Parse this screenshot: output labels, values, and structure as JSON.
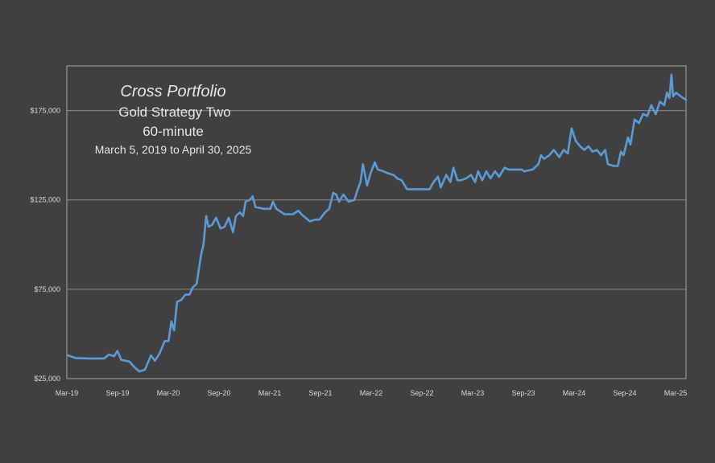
{
  "chart_data": {
    "type": "line",
    "title": "Cross Portfolio",
    "subtitle_1": "Gold Strategy Two",
    "subtitle_2": "60-minute",
    "date_range": "March 5,  2019 to April 30, 2025",
    "xlabel": "",
    "ylabel": "",
    "ylim": [
      25000,
      200000
    ],
    "grid": "horizontal",
    "legend": "none",
    "x_ticks": [
      "Mar-19",
      "Sep-19",
      "Mar-20",
      "Sep-20",
      "Mar-21",
      "Sep-21",
      "Mar-22",
      "Sep-22",
      "Mar-23",
      "Sep-23",
      "Mar-24",
      "Sep-24",
      "Mar-25"
    ],
    "y_ticks": [
      {
        "value": 25000,
        "label": "$25,000"
      },
      {
        "value": 75000,
        "label": "$75,000"
      },
      {
        "value": 125000,
        "label": "$125,000"
      },
      {
        "value": 175000,
        "label": "$175,000"
      }
    ],
    "series": [
      {
        "color": "#5b9bd5",
        "points": [
          [
            "2019-03-05",
            38000
          ],
          [
            "2019-04-01",
            36500
          ],
          [
            "2019-06-01",
            36200
          ],
          [
            "2019-07-15",
            36300
          ],
          [
            "2019-08-01",
            38500
          ],
          [
            "2019-08-20",
            37500
          ],
          [
            "2019-09-01",
            40500
          ],
          [
            "2019-09-15",
            35500
          ],
          [
            "2019-10-15",
            34500
          ],
          [
            "2019-11-01",
            31500
          ],
          [
            "2019-11-20",
            29000
          ],
          [
            "2019-12-10",
            30000
          ],
          [
            "2020-01-01",
            38000
          ],
          [
            "2020-01-15",
            35000
          ],
          [
            "2020-02-01",
            39000
          ],
          [
            "2020-02-20",
            46000
          ],
          [
            "2020-03-05",
            46000
          ],
          [
            "2020-03-15",
            57000
          ],
          [
            "2020-03-25",
            52000
          ],
          [
            "2020-04-05",
            68000
          ],
          [
            "2020-04-20",
            69000
          ],
          [
            "2020-05-05",
            72000
          ],
          [
            "2020-05-20",
            72000
          ],
          [
            "2020-06-01",
            76000
          ],
          [
            "2020-06-15",
            78000
          ],
          [
            "2020-07-01",
            94000
          ],
          [
            "2020-07-10",
            100000
          ],
          [
            "2020-07-20",
            116000
          ],
          [
            "2020-07-28",
            110000
          ],
          [
            "2020-08-10",
            111000
          ],
          [
            "2020-08-25",
            115000
          ],
          [
            "2020-09-10",
            109000
          ],
          [
            "2020-09-25",
            110000
          ],
          [
            "2020-10-10",
            115000
          ],
          [
            "2020-10-25",
            107000
          ],
          [
            "2020-11-05",
            116000
          ],
          [
            "2020-11-20",
            118000
          ],
          [
            "2020-12-01",
            116000
          ],
          [
            "2020-12-10",
            124000
          ],
          [
            "2020-12-25",
            125000
          ],
          [
            "2021-01-05",
            127000
          ],
          [
            "2021-01-15",
            121000
          ],
          [
            "2021-02-15",
            120000
          ],
          [
            "2021-03-10",
            120000
          ],
          [
            "2021-03-20",
            124000
          ],
          [
            "2021-04-01",
            120000
          ],
          [
            "2021-05-01",
            117000
          ],
          [
            "2021-06-01",
            117000
          ],
          [
            "2021-06-20",
            119000
          ],
          [
            "2021-07-01",
            117000
          ],
          [
            "2021-08-01",
            113000
          ],
          [
            "2021-08-20",
            114000
          ],
          [
            "2021-09-05",
            114000
          ],
          [
            "2021-09-25",
            118000
          ],
          [
            "2021-10-10",
            120000
          ],
          [
            "2021-10-25",
            129000
          ],
          [
            "2021-11-05",
            128000
          ],
          [
            "2021-11-15",
            124000
          ],
          [
            "2021-12-01",
            128000
          ],
          [
            "2021-12-20",
            124000
          ],
          [
            "2022-01-10",
            125000
          ],
          [
            "2022-01-20",
            130000
          ],
          [
            "2022-02-01",
            135000
          ],
          [
            "2022-02-10",
            145000
          ],
          [
            "2022-02-25",
            133000
          ],
          [
            "2022-03-10",
            140000
          ],
          [
            "2022-03-25",
            146000
          ],
          [
            "2022-04-05",
            142000
          ],
          [
            "2022-04-25",
            141000
          ],
          [
            "2022-05-10",
            140000
          ],
          [
            "2022-06-01",
            139000
          ],
          [
            "2022-06-15",
            137000
          ],
          [
            "2022-07-01",
            136000
          ],
          [
            "2022-07-20",
            131000
          ],
          [
            "2022-08-15",
            131000
          ],
          [
            "2022-09-15",
            131000
          ],
          [
            "2022-10-10",
            131000
          ],
          [
            "2022-10-25",
            135000
          ],
          [
            "2022-11-10",
            138000
          ],
          [
            "2022-11-20",
            132000
          ],
          [
            "2022-12-10",
            139000
          ],
          [
            "2022-12-25",
            135000
          ],
          [
            "2023-01-05",
            143000
          ],
          [
            "2023-01-20",
            136000
          ],
          [
            "2023-02-01",
            136000
          ],
          [
            "2023-02-20",
            137000
          ],
          [
            "2023-03-10",
            139000
          ],
          [
            "2023-03-25",
            135000
          ],
          [
            "2023-04-05",
            141000
          ],
          [
            "2023-04-20",
            136000
          ],
          [
            "2023-05-05",
            141000
          ],
          [
            "2023-05-20",
            137000
          ],
          [
            "2023-06-05",
            141000
          ],
          [
            "2023-06-20",
            138000
          ],
          [
            "2023-07-10",
            143000
          ],
          [
            "2023-07-25",
            142000
          ],
          [
            "2023-08-20",
            142000
          ],
          [
            "2023-09-10",
            142000
          ],
          [
            "2023-09-20",
            141000
          ],
          [
            "2023-10-20",
            142000
          ],
          [
            "2023-11-10",
            145000
          ],
          [
            "2023-11-20",
            150000
          ],
          [
            "2023-12-01",
            148000
          ],
          [
            "2023-12-20",
            150000
          ],
          [
            "2024-01-05",
            153000
          ],
          [
            "2024-01-25",
            149000
          ],
          [
            "2024-02-10",
            153000
          ],
          [
            "2024-02-25",
            151000
          ],
          [
            "2024-03-10",
            165000
          ],
          [
            "2024-03-25",
            158000
          ],
          [
            "2024-04-10",
            155000
          ],
          [
            "2024-04-25",
            153000
          ],
          [
            "2024-05-10",
            155000
          ],
          [
            "2024-05-25",
            152000
          ],
          [
            "2024-06-10",
            153000
          ],
          [
            "2024-06-25",
            150000
          ],
          [
            "2024-07-10",
            153000
          ],
          [
            "2024-07-20",
            145000
          ],
          [
            "2024-08-10",
            144000
          ],
          [
            "2024-08-25",
            144000
          ],
          [
            "2024-09-05",
            152000
          ],
          [
            "2024-09-15",
            150000
          ],
          [
            "2024-10-01",
            160000
          ],
          [
            "2024-10-10",
            156000
          ],
          [
            "2024-10-25",
            170000
          ],
          [
            "2024-11-10",
            168000
          ],
          [
            "2024-11-25",
            173000
          ],
          [
            "2024-12-10",
            172000
          ],
          [
            "2024-12-25",
            178000
          ],
          [
            "2025-01-10",
            173000
          ],
          [
            "2025-01-25",
            180000
          ],
          [
            "2025-02-10",
            178000
          ],
          [
            "2025-02-20",
            185000
          ],
          [
            "2025-03-01",
            182000
          ],
          [
            "2025-03-08",
            195000
          ],
          [
            "2025-03-14",
            183000
          ],
          [
            "2025-03-25",
            185000
          ],
          [
            "2025-04-10",
            183000
          ],
          [
            "2025-04-30",
            181000
          ]
        ]
      }
    ]
  }
}
